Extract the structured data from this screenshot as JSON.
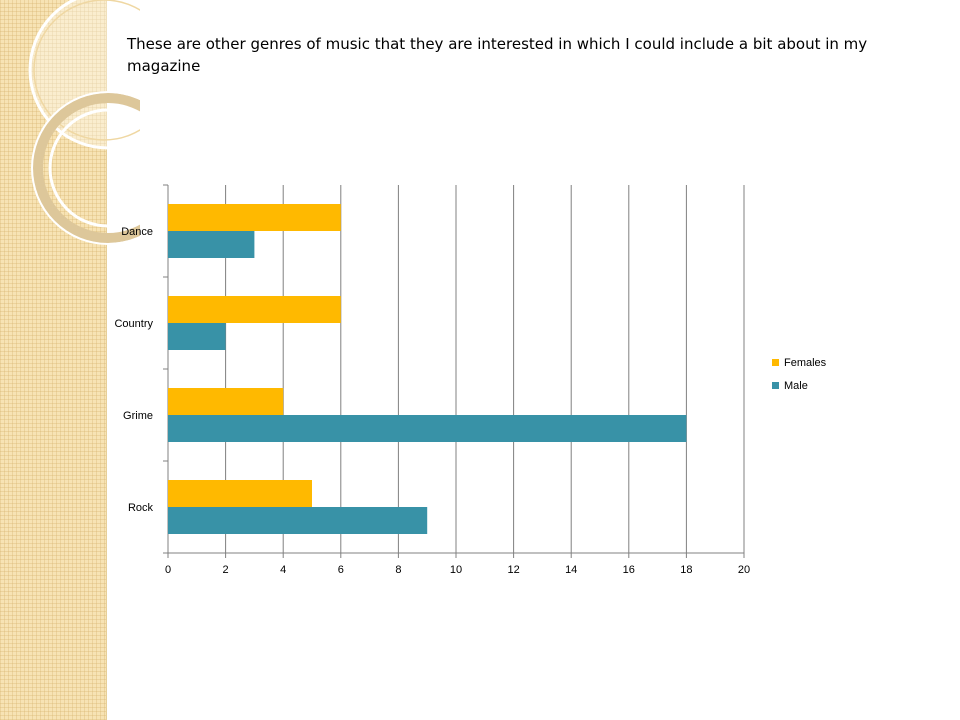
{
  "slide": {
    "title": "These are other genres of music that they are interested in which I could include a bit about in my magazine"
  },
  "chart_data": {
    "type": "bar",
    "orientation": "horizontal",
    "categories": [
      "Rock",
      "Grime",
      "Country",
      "Dance"
    ],
    "series": [
      {
        "name": "Females",
        "color": "#ffb900",
        "values": [
          5,
          4,
          6,
          6
        ]
      },
      {
        "name": "Male",
        "color": "#3892a7",
        "values": [
          9,
          18,
          2,
          3
        ]
      }
    ],
    "xlim": [
      0,
      20
    ],
    "xticks": [
      0,
      2,
      4,
      6,
      8,
      10,
      12,
      14,
      16,
      18,
      20
    ],
    "grid": "vertical",
    "legend_position": "right"
  }
}
